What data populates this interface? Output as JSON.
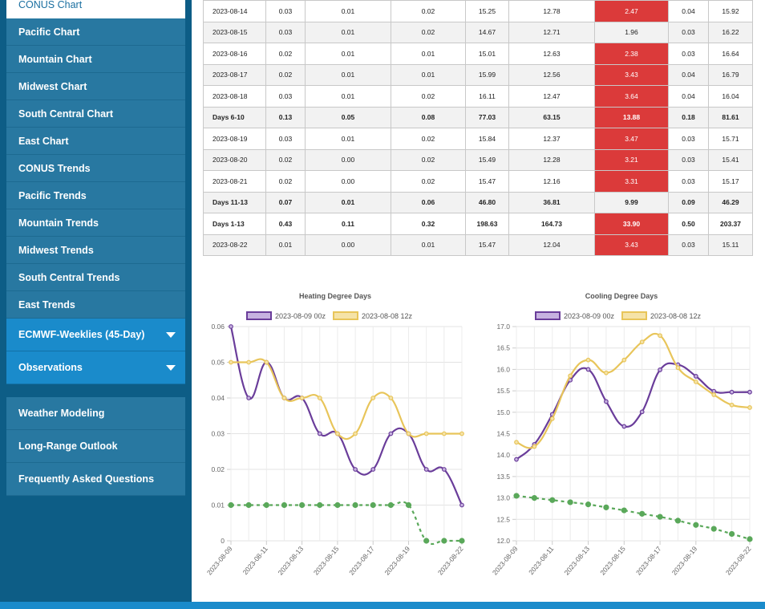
{
  "sidebar": {
    "items": [
      {
        "label": "CONUS Chart",
        "active": true
      },
      {
        "label": "Pacific Chart"
      },
      {
        "label": "Mountain Chart"
      },
      {
        "label": "Midwest Chart"
      },
      {
        "label": "South Central Chart"
      },
      {
        "label": "East Chart"
      },
      {
        "label": "CONUS Trends"
      },
      {
        "label": "Pacific Trends"
      },
      {
        "label": "Mountain Trends"
      },
      {
        "label": "Midwest Trends"
      },
      {
        "label": "South Central Trends"
      },
      {
        "label": "East Trends"
      }
    ],
    "dropdowns": [
      {
        "label": "ECMWF-Weeklies (45-Day)"
      },
      {
        "label": "Observations"
      }
    ],
    "links": [
      {
        "label": "Weather Modeling"
      },
      {
        "label": "Long-Range Outlook"
      },
      {
        "label": "Frequently Asked Questions"
      }
    ]
  },
  "table": {
    "rows": [
      {
        "date": "2023-08-14",
        "c": [
          "0.03",
          "0.01",
          "0.02",
          "15.25",
          "12.78",
          "2.47",
          "0.04",
          "15.92"
        ],
        "hot": true,
        "bold": false
      },
      {
        "date": "2023-08-15",
        "c": [
          "0.03",
          "0.01",
          "0.02",
          "14.67",
          "12.71",
          "1.96",
          "0.03",
          "16.22"
        ],
        "hot": false,
        "bold": false
      },
      {
        "date": "2023-08-16",
        "c": [
          "0.02",
          "0.01",
          "0.01",
          "15.01",
          "12.63",
          "2.38",
          "0.03",
          "16.64"
        ],
        "hot": true,
        "bold": false
      },
      {
        "date": "2023-08-17",
        "c": [
          "0.02",
          "0.01",
          "0.01",
          "15.99",
          "12.56",
          "3.43",
          "0.04",
          "16.79"
        ],
        "hot": true,
        "bold": false
      },
      {
        "date": "2023-08-18",
        "c": [
          "0.03",
          "0.01",
          "0.02",
          "16.11",
          "12.47",
          "3.64",
          "0.04",
          "16.04"
        ],
        "hot": true,
        "bold": false
      },
      {
        "date": "Days 6-10",
        "c": [
          "0.13",
          "0.05",
          "0.08",
          "77.03",
          "63.15",
          "13.88",
          "0.18",
          "81.61"
        ],
        "hot": true,
        "bold": true
      },
      {
        "date": "2023-08-19",
        "c": [
          "0.03",
          "0.01",
          "0.02",
          "15.84",
          "12.37",
          "3.47",
          "0.03",
          "15.71"
        ],
        "hot": true,
        "bold": false
      },
      {
        "date": "2023-08-20",
        "c": [
          "0.02",
          "0.00",
          "0.02",
          "15.49",
          "12.28",
          "3.21",
          "0.03",
          "15.41"
        ],
        "hot": true,
        "bold": false
      },
      {
        "date": "2023-08-21",
        "c": [
          "0.02",
          "0.00",
          "0.02",
          "15.47",
          "12.16",
          "3.31",
          "0.03",
          "15.17"
        ],
        "hot": true,
        "bold": false
      },
      {
        "date": "Days 11-13",
        "c": [
          "0.07",
          "0.01",
          "0.06",
          "46.80",
          "36.81",
          "9.99",
          "0.09",
          "46.29"
        ],
        "hot": false,
        "bold": true
      },
      {
        "date": "Days 1-13",
        "c": [
          "0.43",
          "0.11",
          "0.32",
          "198.63",
          "164.73",
          "33.90",
          "0.50",
          "203.37"
        ],
        "hot": true,
        "bold": true
      },
      {
        "date": "2023-08-22",
        "c": [
          "0.01",
          "0.00",
          "0.01",
          "15.47",
          "12.04",
          "3.43",
          "0.03",
          "15.11"
        ],
        "hot": true,
        "bold": false
      }
    ]
  },
  "colors": {
    "purple": "#6a3d9a",
    "yellow": "#e8c55a",
    "green": "#5aa85a",
    "hot": "#db3a3a"
  },
  "chart_data": [
    {
      "type": "line",
      "title": "Heating Degree Days",
      "x": [
        "2023-08-09",
        "2023-08-10",
        "2023-08-11",
        "2023-08-12",
        "2023-08-13",
        "2023-08-14",
        "2023-08-15",
        "2023-08-16",
        "2023-08-17",
        "2023-08-18",
        "2023-08-19",
        "2023-08-20",
        "2023-08-21",
        "2023-08-22"
      ],
      "xticks": [
        "2023-08-09",
        "2023-08-11",
        "2023-08-13",
        "2023-08-15",
        "2023-08-17",
        "2023-08-19",
        "2023-08-22"
      ],
      "yticks": [
        "0",
        "0.01",
        "0.02",
        "0.03",
        "0.04",
        "0.05",
        "0.06"
      ],
      "ylim": [
        0,
        0.06
      ],
      "series": [
        {
          "name": "2023-08-09 00z",
          "values": [
            0.06,
            0.04,
            0.05,
            0.04,
            0.04,
            0.03,
            0.03,
            0.02,
            0.02,
            0.03,
            0.03,
            0.02,
            0.02,
            0.01
          ]
        },
        {
          "name": "2023-08-08 12z",
          "values": [
            0.05,
            0.05,
            0.05,
            0.04,
            0.04,
            0.04,
            0.03,
            0.03,
            0.04,
            0.04,
            0.03,
            0.03,
            0.03,
            0.03
          ]
        },
        {
          "values": [
            0.01,
            0.01,
            0.01,
            0.01,
            0.01,
            0.01,
            0.01,
            0.01,
            0.01,
            0.01,
            0.01,
            0.0,
            0.0,
            0.0
          ]
        }
      ]
    },
    {
      "type": "line",
      "title": "Cooling Degree Days",
      "x": [
        "2023-08-09",
        "2023-08-10",
        "2023-08-11",
        "2023-08-12",
        "2023-08-13",
        "2023-08-14",
        "2023-08-15",
        "2023-08-16",
        "2023-08-17",
        "2023-08-18",
        "2023-08-19",
        "2023-08-20",
        "2023-08-21",
        "2023-08-22"
      ],
      "xticks": [
        "2023-08-09",
        "2023-08-11",
        "2023-08-13",
        "2023-08-15",
        "2023-08-17",
        "2023-08-19",
        "2023-08-22"
      ],
      "yticks": [
        "12.0",
        "12.5",
        "13.0",
        "13.5",
        "14.0",
        "14.5",
        "15.0",
        "15.5",
        "16.0",
        "16.5",
        "17.0"
      ],
      "ylim": [
        12.0,
        17.0
      ],
      "series": [
        {
          "name": "2023-08-09 00z",
          "values": [
            13.9,
            14.25,
            14.95,
            15.75,
            16.0,
            15.25,
            14.67,
            15.01,
            15.99,
            16.11,
            15.84,
            15.49,
            15.47,
            15.47
          ]
        },
        {
          "name": "2023-08-08 12z",
          "values": [
            14.3,
            14.2,
            14.85,
            15.85,
            16.22,
            15.92,
            16.22,
            16.64,
            16.79,
            16.04,
            15.71,
            15.41,
            15.17,
            15.11
          ]
        },
        {
          "values": [
            13.05,
            13.0,
            12.95,
            12.9,
            12.85,
            12.78,
            12.71,
            12.63,
            12.56,
            12.47,
            12.37,
            12.28,
            12.16,
            12.04
          ]
        }
      ]
    }
  ]
}
